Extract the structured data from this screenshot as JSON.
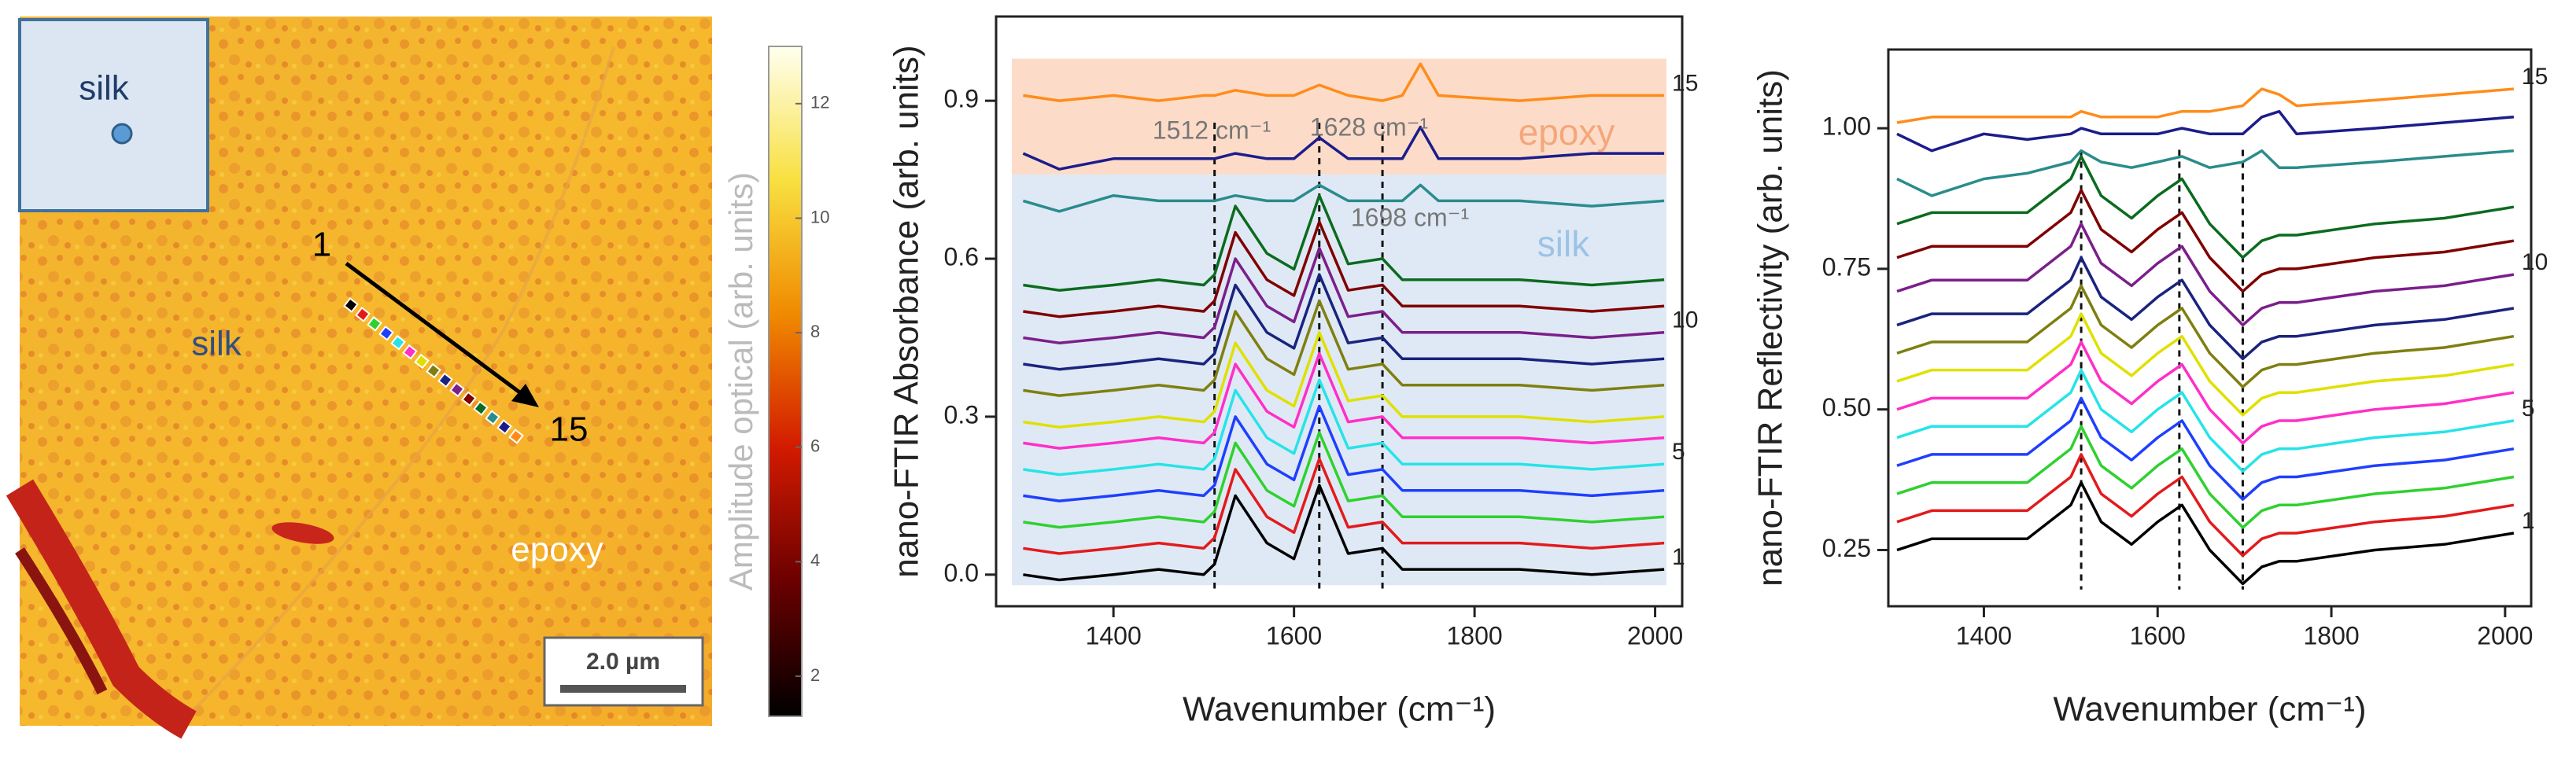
{
  "image_panel": {
    "inset_label": "silk",
    "start_label": "1",
    "end_label": "15",
    "silk_label": "silk",
    "epoxy_label": "epoxy",
    "scale_bar": "2.0 µm",
    "colorbar": {
      "label": "Amplitude  optical (arb. units)",
      "lim": [
        1.3,
        13.0
      ],
      "ticks": [
        2,
        4,
        6,
        8,
        10,
        12
      ]
    }
  },
  "chart_data": [
    {
      "type": "line",
      "xlabel": "Wavenumber (cm⁻¹)",
      "ylabel": "nano-FTIR Absorbance (arb. units)",
      "xlim": [
        1270,
        2030
      ],
      "xticks": [
        1400,
        1600,
        1800,
        2000
      ],
      "ylim": [
        -0.06,
        1.06
      ],
      "yticks": [
        {
          "value": 0,
          "label": "0.0"
        },
        0.3,
        0.6,
        0.9
      ],
      "regions": [
        {
          "label": "epoxy",
          "ylim": [
            0.76,
            0.98
          ],
          "color": "#fcdcc8",
          "text_color": "#f4a77a"
        },
        {
          "label": "silk",
          "ylim": [
            -0.02,
            0.76
          ],
          "color": "#dfe9f5",
          "text_color": "#9cc3e6"
        }
      ],
      "reference_lines": [
        1512,
        1628,
        1698
      ],
      "annotations": [
        "1512 cm⁻¹",
        "1628 cm⁻¹",
        "1698 cm⁻¹"
      ],
      "x": [
        1300,
        1340,
        1400,
        1450,
        1500,
        1512,
        1535,
        1570,
        1600,
        1628,
        1660,
        1698,
        1720,
        1740,
        1760,
        1850,
        1930,
        2010
      ],
      "series": [
        {
          "label": "1",
          "color": "#000000",
          "values": [
            0.0,
            -0.01,
            0.0,
            0.01,
            0.0,
            0.02,
            0.15,
            0.06,
            0.03,
            0.17,
            0.04,
            0.05,
            0.01,
            0.01,
            0.01,
            0.01,
            0.0,
            0.01
          ]
        },
        {
          "color": "#e31a1c",
          "values": [
            0.05,
            0.04,
            0.05,
            0.06,
            0.05,
            0.07,
            0.2,
            0.11,
            0.08,
            0.22,
            0.09,
            0.1,
            0.06,
            0.06,
            0.06,
            0.06,
            0.05,
            0.06
          ]
        },
        {
          "color": "#2fd12f",
          "values": [
            0.1,
            0.09,
            0.1,
            0.11,
            0.1,
            0.12,
            0.25,
            0.16,
            0.13,
            0.27,
            0.14,
            0.15,
            0.11,
            0.11,
            0.11,
            0.11,
            0.1,
            0.11
          ]
        },
        {
          "color": "#1f3fff",
          "values": [
            0.15,
            0.14,
            0.15,
            0.16,
            0.15,
            0.17,
            0.3,
            0.21,
            0.18,
            0.32,
            0.19,
            0.2,
            0.16,
            0.16,
            0.16,
            0.16,
            0.15,
            0.16
          ]
        },
        {
          "label": "5",
          "color": "#27e3e8",
          "values": [
            0.2,
            0.19,
            0.2,
            0.21,
            0.2,
            0.22,
            0.35,
            0.26,
            0.23,
            0.37,
            0.24,
            0.25,
            0.21,
            0.21,
            0.21,
            0.21,
            0.2,
            0.21
          ]
        },
        {
          "color": "#ff2fc8",
          "values": [
            0.25,
            0.24,
            0.25,
            0.26,
            0.25,
            0.27,
            0.4,
            0.31,
            0.28,
            0.42,
            0.29,
            0.3,
            0.26,
            0.26,
            0.26,
            0.26,
            0.25,
            0.26
          ]
        },
        {
          "color": "#e0e000",
          "values": [
            0.29,
            0.28,
            0.29,
            0.3,
            0.29,
            0.31,
            0.44,
            0.35,
            0.32,
            0.46,
            0.33,
            0.34,
            0.3,
            0.3,
            0.3,
            0.3,
            0.29,
            0.3
          ]
        },
        {
          "color": "#7f7f10",
          "values": [
            0.35,
            0.34,
            0.35,
            0.36,
            0.35,
            0.37,
            0.5,
            0.41,
            0.38,
            0.52,
            0.39,
            0.4,
            0.36,
            0.36,
            0.36,
            0.36,
            0.35,
            0.36
          ]
        },
        {
          "color": "#1a237e",
          "values": [
            0.4,
            0.39,
            0.4,
            0.41,
            0.4,
            0.42,
            0.55,
            0.46,
            0.43,
            0.57,
            0.44,
            0.45,
            0.41,
            0.41,
            0.41,
            0.41,
            0.4,
            0.41
          ]
        },
        {
          "label": "10",
          "color": "#7b1f8a",
          "values": [
            0.45,
            0.44,
            0.45,
            0.46,
            0.45,
            0.47,
            0.6,
            0.51,
            0.48,
            0.62,
            0.49,
            0.5,
            0.46,
            0.46,
            0.46,
            0.46,
            0.45,
            0.46
          ]
        },
        {
          "color": "#800000",
          "values": [
            0.5,
            0.49,
            0.5,
            0.51,
            0.5,
            0.52,
            0.65,
            0.56,
            0.53,
            0.67,
            0.54,
            0.55,
            0.51,
            0.51,
            0.51,
            0.51,
            0.5,
            0.51
          ]
        },
        {
          "color": "#0b6b1e",
          "values": [
            0.55,
            0.54,
            0.55,
            0.56,
            0.55,
            0.57,
            0.7,
            0.61,
            0.58,
            0.72,
            0.59,
            0.6,
            0.56,
            0.56,
            0.56,
            0.56,
            0.55,
            0.56
          ]
        },
        {
          "color": "#2a8c8c",
          "values": [
            0.71,
            0.69,
            0.72,
            0.71,
            0.71,
            0.71,
            0.72,
            0.71,
            0.71,
            0.74,
            0.71,
            0.71,
            0.71,
            0.74,
            0.71,
            0.71,
            0.7,
            0.71
          ]
        },
        {
          "color": "#1c1c8c",
          "values": [
            0.8,
            0.77,
            0.79,
            0.79,
            0.79,
            0.79,
            0.8,
            0.79,
            0.79,
            0.83,
            0.79,
            0.79,
            0.79,
            0.85,
            0.79,
            0.79,
            0.8,
            0.8
          ]
        },
        {
          "label": "15",
          "color": "#ff8c1a",
          "values": [
            0.91,
            0.9,
            0.91,
            0.9,
            0.91,
            0.91,
            0.92,
            0.91,
            0.91,
            0.93,
            0.91,
            0.9,
            0.91,
            0.97,
            0.91,
            0.9,
            0.91,
            0.91
          ]
        }
      ]
    },
    {
      "type": "line",
      "xlabel": "Wavenumber (cm⁻¹)",
      "ylabel": "nano-FTIR Reflectivity (arb. units)",
      "xlim": [
        1290,
        2030
      ],
      "xticks": [
        1400,
        1600,
        1800,
        2000
      ],
      "ylim": [
        0.15,
        1.14
      ],
      "yticks": [
        0.25,
        {
          "value": 0.5,
          "label": "0.50"
        },
        0.75,
        {
          "value": 1,
          "label": "1.00"
        }
      ],
      "reference_lines": [
        1512,
        1625,
        1698
      ],
      "x": [
        1300,
        1340,
        1400,
        1450,
        1500,
        1512,
        1535,
        1570,
        1600,
        1628,
        1660,
        1698,
        1720,
        1740,
        1760,
        1850,
        1930,
        2010
      ],
      "series": [
        {
          "label": "1",
          "color": "#000000",
          "values": [
            0.25,
            0.27,
            0.27,
            0.27,
            0.33,
            0.37,
            0.3,
            0.26,
            0.3,
            0.33,
            0.25,
            0.19,
            0.22,
            0.23,
            0.23,
            0.25,
            0.26,
            0.28
          ]
        },
        {
          "color": "#e31a1c",
          "values": [
            0.3,
            0.32,
            0.32,
            0.32,
            0.38,
            0.42,
            0.35,
            0.31,
            0.35,
            0.38,
            0.3,
            0.24,
            0.27,
            0.28,
            0.28,
            0.3,
            0.31,
            0.33
          ]
        },
        {
          "color": "#2fd12f",
          "values": [
            0.35,
            0.37,
            0.37,
            0.37,
            0.43,
            0.47,
            0.4,
            0.36,
            0.4,
            0.43,
            0.35,
            0.29,
            0.32,
            0.33,
            0.33,
            0.35,
            0.36,
            0.38
          ]
        },
        {
          "color": "#1f3fff",
          "values": [
            0.4,
            0.42,
            0.42,
            0.42,
            0.48,
            0.52,
            0.45,
            0.41,
            0.45,
            0.48,
            0.4,
            0.34,
            0.37,
            0.38,
            0.38,
            0.4,
            0.41,
            0.43
          ]
        },
        {
          "label": "5",
          "color": "#27e3e8",
          "values": [
            0.45,
            0.47,
            0.47,
            0.47,
            0.53,
            0.57,
            0.5,
            0.46,
            0.5,
            0.53,
            0.45,
            0.39,
            0.42,
            0.43,
            0.43,
            0.45,
            0.46,
            0.48
          ]
        },
        {
          "color": "#ff2fc8",
          "values": [
            0.5,
            0.52,
            0.52,
            0.52,
            0.58,
            0.62,
            0.55,
            0.51,
            0.55,
            0.58,
            0.5,
            0.44,
            0.47,
            0.48,
            0.48,
            0.5,
            0.51,
            0.53
          ]
        },
        {
          "color": "#e0e000",
          "values": [
            0.55,
            0.57,
            0.57,
            0.57,
            0.63,
            0.67,
            0.6,
            0.56,
            0.6,
            0.63,
            0.55,
            0.49,
            0.52,
            0.53,
            0.53,
            0.55,
            0.56,
            0.58
          ]
        },
        {
          "color": "#7f7f10",
          "values": [
            0.6,
            0.62,
            0.62,
            0.62,
            0.68,
            0.72,
            0.65,
            0.61,
            0.65,
            0.68,
            0.6,
            0.54,
            0.57,
            0.58,
            0.58,
            0.6,
            0.61,
            0.63
          ]
        },
        {
          "color": "#1a237e",
          "values": [
            0.65,
            0.67,
            0.67,
            0.67,
            0.73,
            0.77,
            0.7,
            0.66,
            0.7,
            0.73,
            0.65,
            0.59,
            0.62,
            0.63,
            0.63,
            0.65,
            0.66,
            0.68
          ]
        },
        {
          "label": "10",
          "color": "#7b1f8a",
          "values": [
            0.71,
            0.73,
            0.73,
            0.73,
            0.79,
            0.83,
            0.76,
            0.72,
            0.76,
            0.79,
            0.71,
            0.65,
            0.68,
            0.69,
            0.69,
            0.71,
            0.72,
            0.74
          ]
        },
        {
          "color": "#800000",
          "values": [
            0.77,
            0.79,
            0.79,
            0.79,
            0.85,
            0.89,
            0.82,
            0.78,
            0.82,
            0.85,
            0.77,
            0.71,
            0.74,
            0.75,
            0.75,
            0.77,
            0.78,
            0.8
          ]
        },
        {
          "color": "#0b6b1e",
          "values": [
            0.83,
            0.85,
            0.85,
            0.85,
            0.91,
            0.95,
            0.88,
            0.84,
            0.88,
            0.91,
            0.83,
            0.77,
            0.8,
            0.81,
            0.81,
            0.83,
            0.84,
            0.86
          ]
        },
        {
          "color": "#2a8c8c",
          "values": [
            0.91,
            0.88,
            0.91,
            0.92,
            0.94,
            0.96,
            0.94,
            0.93,
            0.94,
            0.95,
            0.93,
            0.94,
            0.96,
            0.93,
            0.93,
            0.94,
            0.95,
            0.96
          ]
        },
        {
          "color": "#1c1c8c",
          "values": [
            0.99,
            0.96,
            0.99,
            0.98,
            0.99,
            1.0,
            0.99,
            0.99,
            0.99,
            1.0,
            0.99,
            0.99,
            1.02,
            1.03,
            0.99,
            1.0,
            1.01,
            1.02
          ]
        },
        {
          "label": "15",
          "color": "#ff8c1a",
          "values": [
            1.01,
            1.02,
            1.02,
            1.02,
            1.02,
            1.03,
            1.02,
            1.02,
            1.02,
            1.03,
            1.03,
            1.04,
            1.07,
            1.06,
            1.04,
            1.05,
            1.06,
            1.07
          ]
        }
      ]
    }
  ]
}
